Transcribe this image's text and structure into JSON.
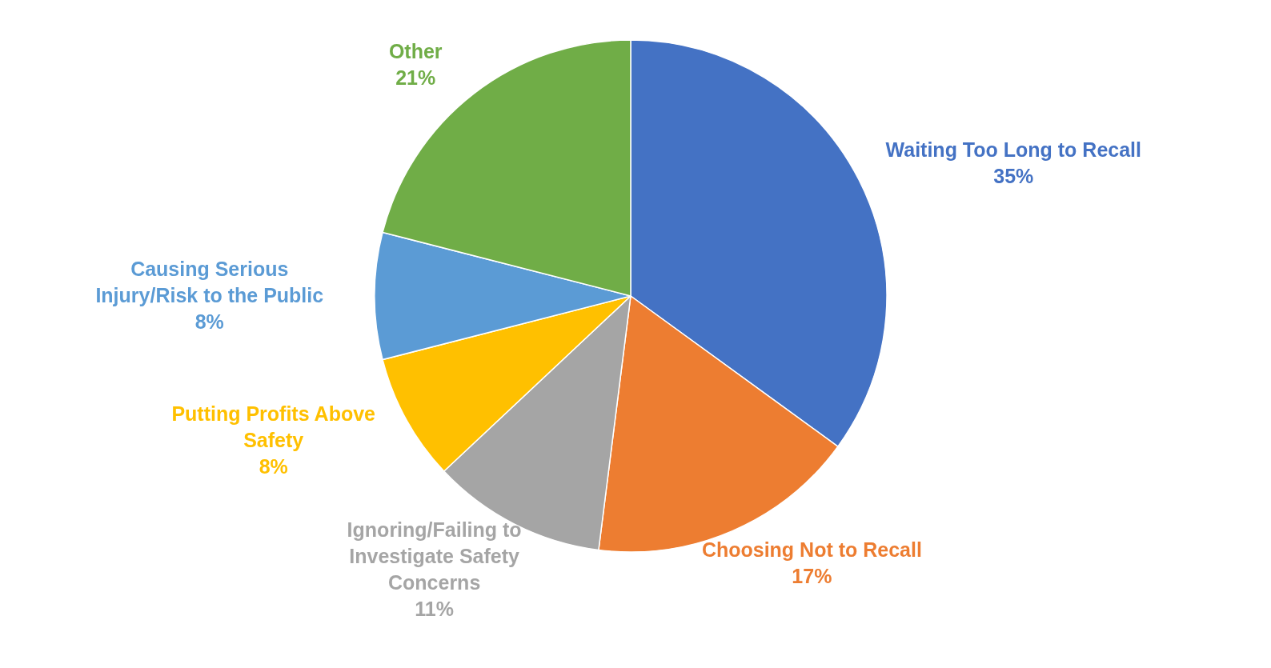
{
  "chart_data": {
    "type": "pie",
    "categories": [
      "Waiting Too Long to Recall",
      "Choosing Not to Recall",
      "Ignoring/Failing to Investigate Safety Concerns",
      "Putting Profits Above Safety",
      "Causing Serious Injury/Risk to the Public",
      "Other"
    ],
    "values": [
      35,
      17,
      11,
      8,
      8,
      21
    ],
    "value_labels": [
      "35%",
      "17%",
      "11%",
      "8%",
      "8%",
      "21%"
    ],
    "colors": [
      "#4472c4",
      "#ed7d31",
      "#a5a5a5",
      "#ffc000",
      "#5b9bd5",
      "#70ad47"
    ]
  }
}
